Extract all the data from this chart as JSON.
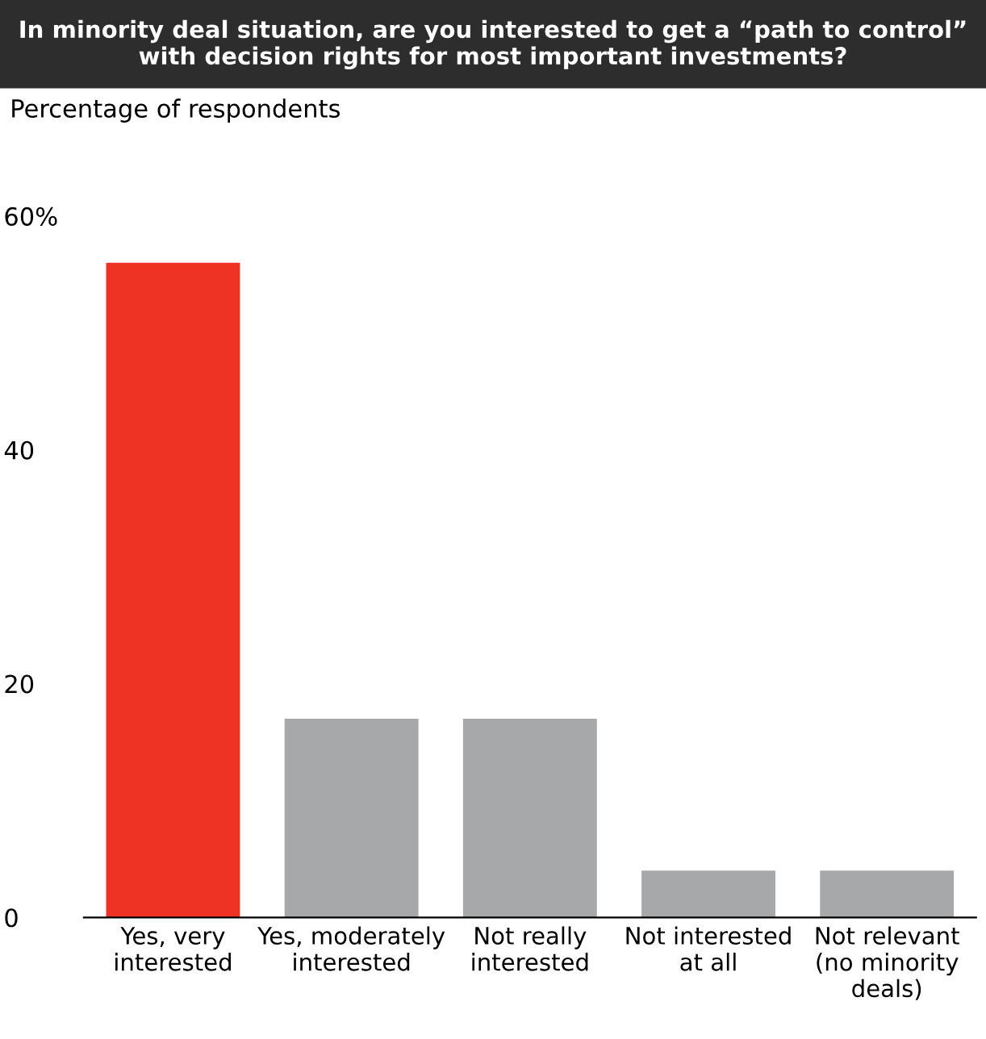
{
  "chart_data": {
    "type": "bar",
    "title": "In minority deal situation, are you interested to get a “path to control”\nwith decision rights for most important investments?",
    "ylabel": "Percentage of respondents",
    "categories": [
      "Yes, very\ninterested",
      "Yes, moderately\ninterested",
      "Not really\ninterested",
      "Not interested\nat all",
      "Not relevant\n(no minority\ndeals)"
    ],
    "values": [
      56,
      17,
      17,
      4,
      4
    ],
    "colors": [
      "#ee3224",
      "#a7a8aa",
      "#a7a8aa",
      "#a7a8aa",
      "#a7a8aa"
    ],
    "ylim": [
      0,
      60
    ],
    "yticks": [
      0,
      20,
      40,
      {
        "value": 60,
        "label": "60%"
      }
    ],
    "grid": false
  }
}
